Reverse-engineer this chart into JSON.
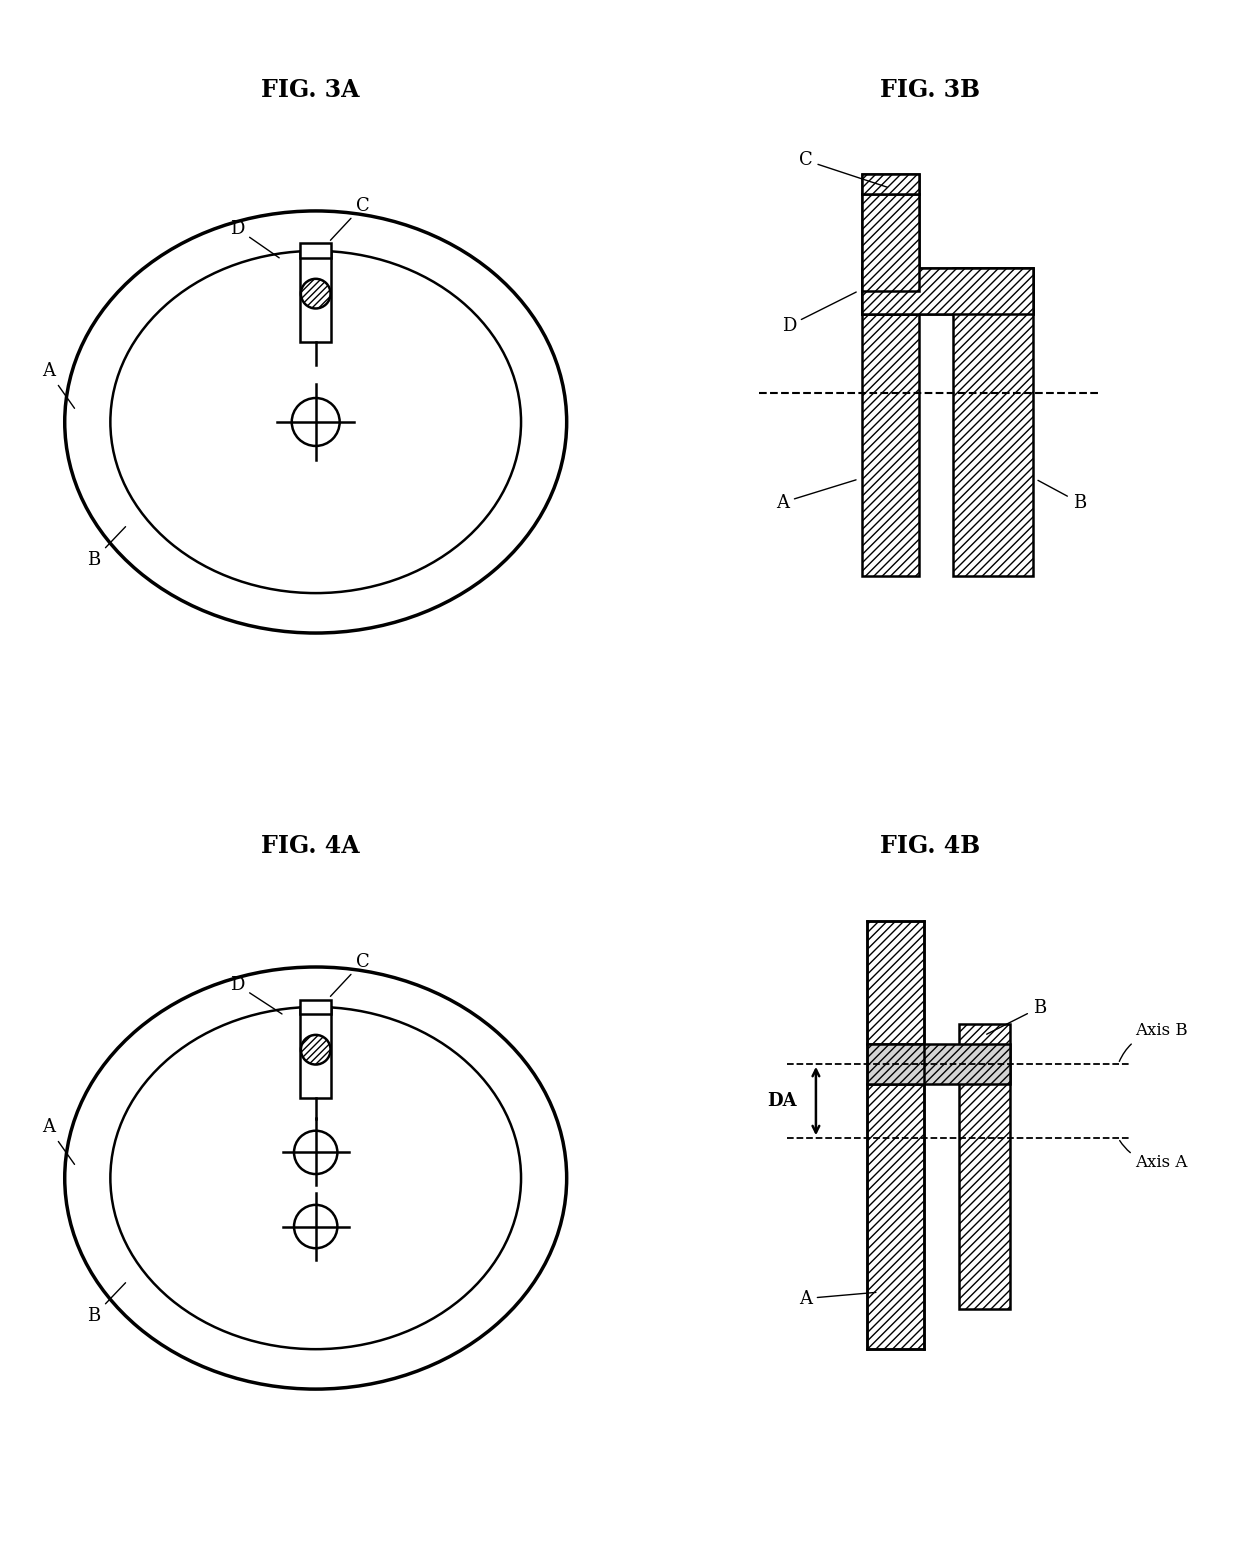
{
  "fig_titles": [
    "FIG. 3A",
    "FIG. 3B",
    "FIG. 4A",
    "FIG. 4B"
  ],
  "background_color": "#ffffff",
  "line_color": "#000000",
  "label_fontsize": 13,
  "title_fontsize": 17
}
